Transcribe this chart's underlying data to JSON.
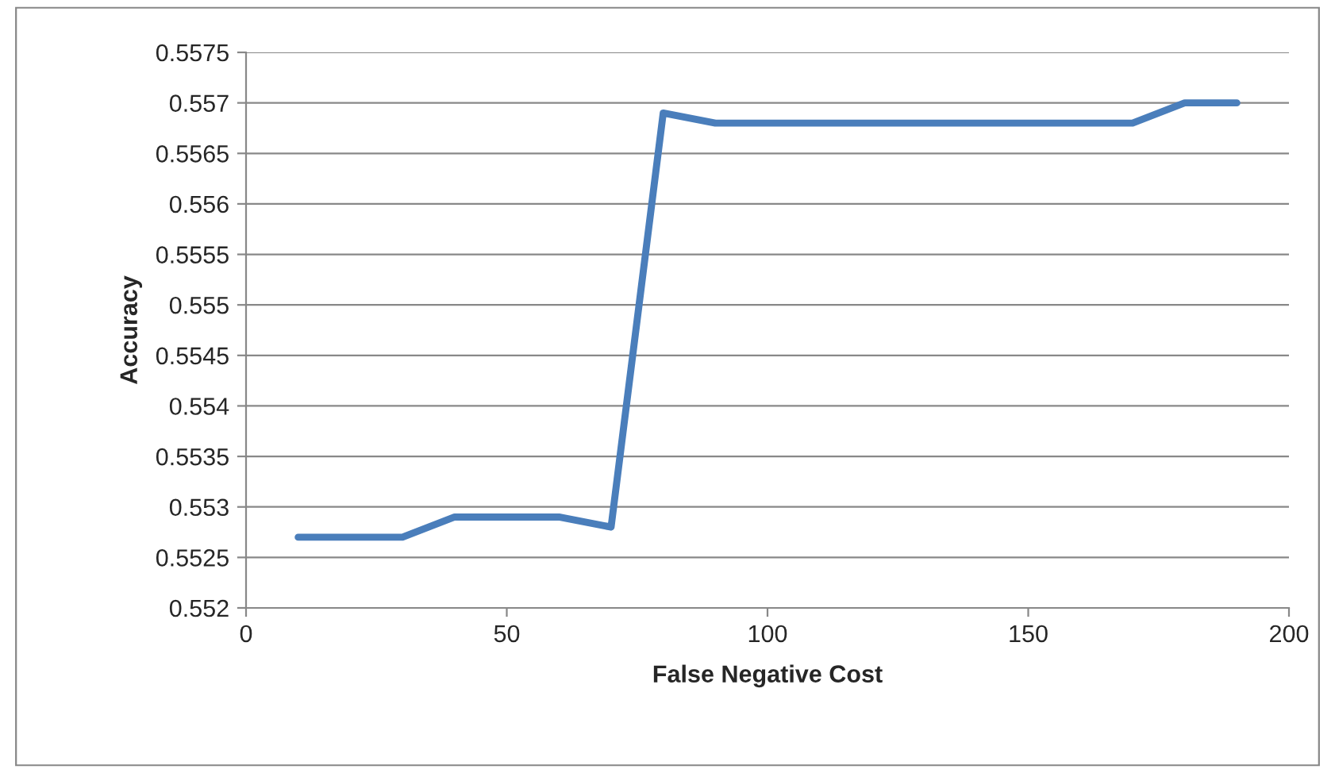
{
  "chart_data": {
    "type": "line",
    "xlabel": "False Negative Cost",
    "ylabel": "Accuracy",
    "x": [
      10,
      20,
      30,
      40,
      50,
      60,
      70,
      80,
      90,
      100,
      110,
      120,
      130,
      140,
      150,
      160,
      170,
      180,
      190
    ],
    "series": [
      {
        "color": "#4a7ebb",
        "values": [
          0.5527,
          0.5527,
          0.5527,
          0.5529,
          0.5529,
          0.5529,
          0.5528,
          0.5569,
          0.5568,
          0.5568,
          0.5568,
          0.5568,
          0.5568,
          0.5568,
          0.5568,
          0.5568,
          0.5568,
          0.557,
          0.557
        ]
      }
    ],
    "xlim": [
      0,
      200
    ],
    "xticks": [
      0,
      50,
      100,
      150,
      200
    ],
    "ylim": [
      0.552,
      0.5575
    ],
    "yticks": [
      0.552,
      0.5525,
      0.553,
      0.5535,
      0.554,
      0.5545,
      0.555,
      0.5555,
      0.556,
      0.5565,
      0.557,
      0.5575
    ],
    "grid": "y",
    "legend": false,
    "marker": "none",
    "line_style": "solid"
  }
}
